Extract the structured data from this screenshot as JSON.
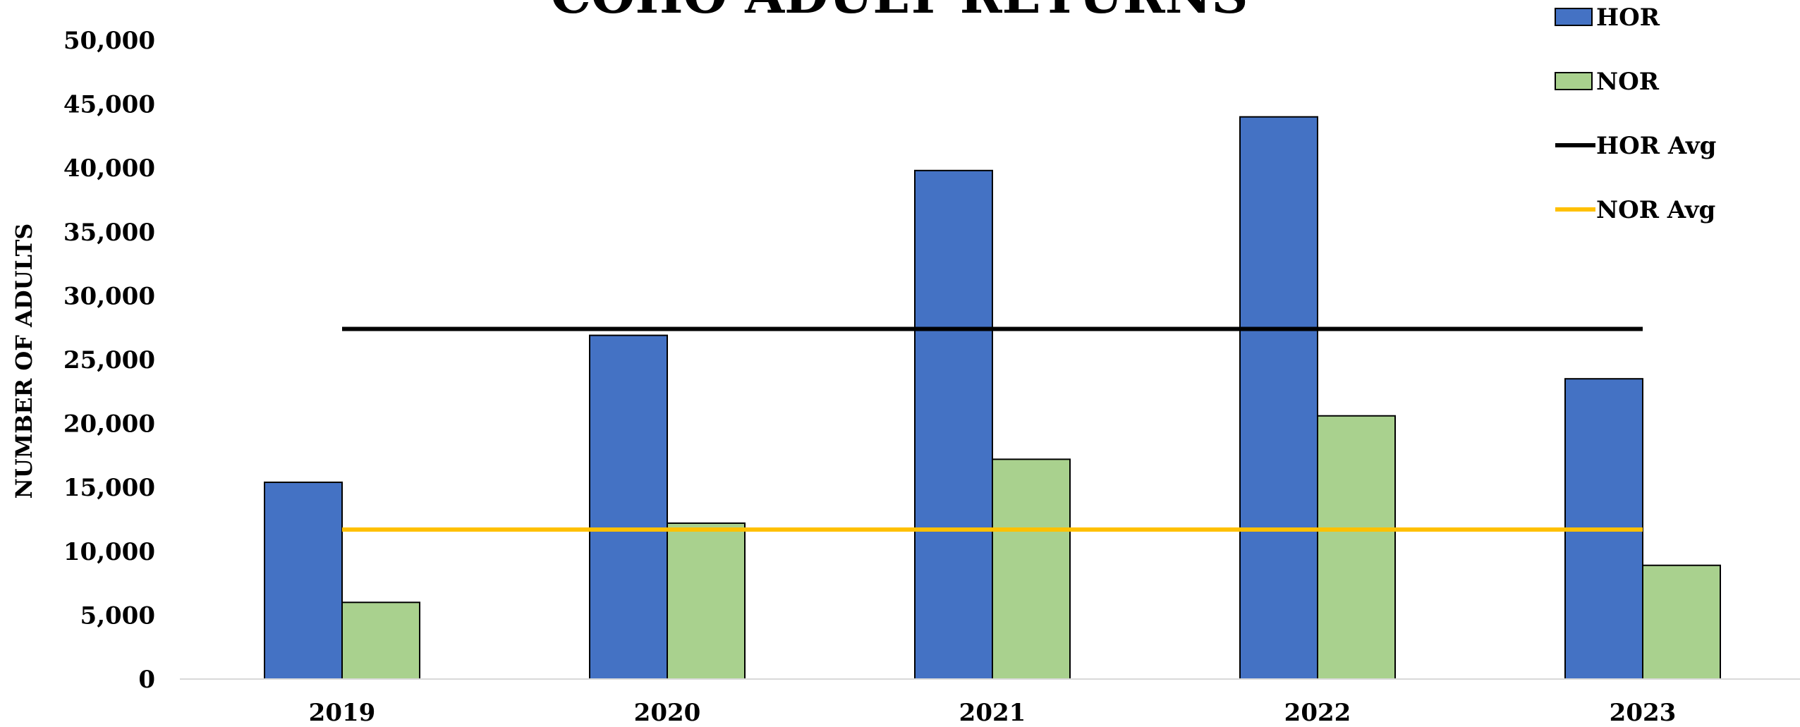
{
  "chart_data": {
    "type": "bar",
    "title": "COHO ADULT RETURNS",
    "xlabel": "",
    "ylabel": "NUMBER OF ADULTS",
    "categories": [
      "2019",
      "2020",
      "2021",
      "2022",
      "2023"
    ],
    "series": [
      {
        "name": "HOR",
        "type": "bar",
        "color": "#4472C4",
        "values": [
          15400,
          26900,
          39800,
          44000,
          23500
        ]
      },
      {
        "name": "NOR",
        "type": "bar",
        "color": "#A9D18E",
        "values": [
          6000,
          12200,
          17200,
          20600,
          8900
        ]
      },
      {
        "name": "HOR Avg",
        "type": "line",
        "color": "#000000",
        "value": 27400
      },
      {
        "name": "NOR Avg",
        "type": "line",
        "color": "#FFC000",
        "value": 11700
      }
    ],
    "ylim": [
      0,
      50000
    ],
    "yticks": [
      0,
      5000,
      10000,
      15000,
      20000,
      25000,
      30000,
      35000,
      40000,
      45000,
      50000
    ],
    "ytick_labels": [
      "0",
      "5,000",
      "10,000",
      "15,000",
      "20,000",
      "25,000",
      "30,000",
      "35,000",
      "40,000",
      "45,000",
      "50,000"
    ],
    "grid": false,
    "legend_position": "top-right"
  }
}
